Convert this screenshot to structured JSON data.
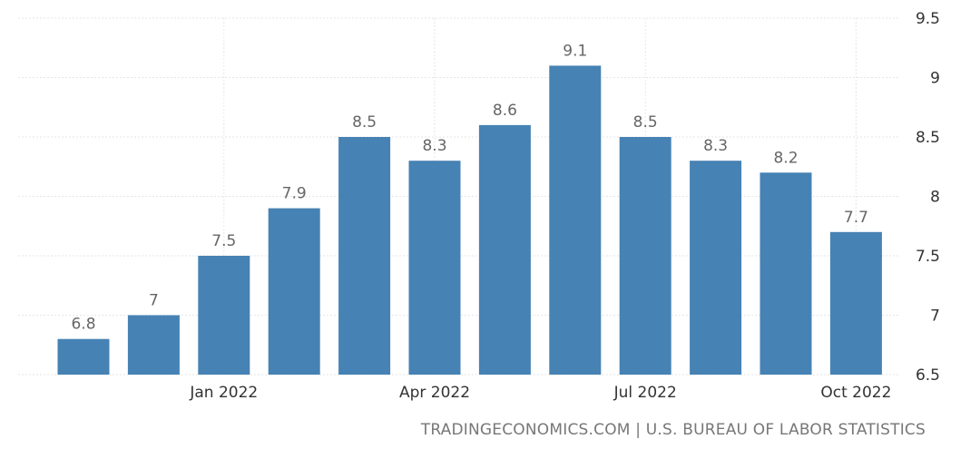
{
  "chart_data": {
    "type": "bar",
    "categories": [
      "Nov 2021",
      "Dec 2021",
      "Jan 2022",
      "Feb 2022",
      "Mar 2022",
      "Apr 2022",
      "May 2022",
      "Jun 2022",
      "Jul 2022",
      "Aug 2022",
      "Sep 2022",
      "Oct 2022"
    ],
    "values": [
      6.8,
      7,
      7.5,
      7.9,
      8.5,
      8.3,
      8.6,
      9.1,
      8.5,
      8.3,
      8.2,
      7.7
    ],
    "data_labels": [
      "6.8",
      "7",
      "7.5",
      "7.9",
      "8.5",
      "8.3",
      "8.6",
      "9.1",
      "8.5",
      "8.3",
      "8.2",
      "7.7"
    ],
    "x_tick_labels": [
      {
        "category": "Jan 2022",
        "label": "Jan 2022"
      },
      {
        "category": "Apr 2022",
        "label": "Apr 2022"
      },
      {
        "category": "Jul 2022",
        "label": "Jul 2022"
      },
      {
        "category": "Oct 2022",
        "label": "Oct 2022"
      }
    ],
    "y_ticks": [
      6.5,
      7,
      7.5,
      8,
      8.5,
      9,
      9.5
    ],
    "y_tick_labels": [
      "6.5",
      "7",
      "7.5",
      "8",
      "8.5",
      "9",
      "9.5"
    ],
    "ylim": [
      6.5,
      9.5
    ],
    "y_axis_position": "right",
    "grid": true,
    "title": "",
    "xlabel": "",
    "ylabel": "",
    "colors": {
      "bar": "#4682b4",
      "grid": "#e6e6e6",
      "label": "#666666",
      "tick": "#333333"
    }
  },
  "source_text": "TRADINGECONOMICS.COM | U.S. BUREAU OF LABOR STATISTICS"
}
